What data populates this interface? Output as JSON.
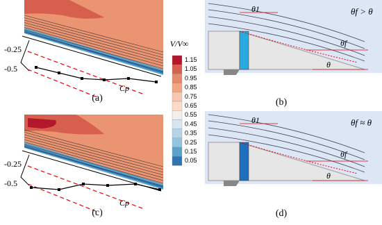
{
  "colorbar": {
    "title": "V/V∞",
    "ticks": [
      "1.15",
      "1.05",
      "0.95",
      "0.85",
      "0.75",
      "0.65",
      "0.55",
      "0.45",
      "0.35",
      "0.25",
      "0.15",
      "0.05"
    ]
  },
  "contour_panels": [
    {
      "label": "(a)",
      "axis_labels": [
        "-0.25",
        "-0.5"
      ],
      "cp_label": "Cp"
    },
    {
      "label": "(c)",
      "axis_labels": [
        "-0.25",
        "-0.5"
      ],
      "cp_label": "Cp"
    }
  ],
  "schematic_panels": [
    {
      "label": "(b)",
      "theta_1": "θ1",
      "relation": "θf > θ",
      "theta_f": "θf",
      "theta": "θ"
    },
    {
      "label": "(d)",
      "theta_1": "θ1",
      "relation": "θf ≈ θ",
      "theta_f": "θf",
      "theta": "θ"
    }
  ]
}
